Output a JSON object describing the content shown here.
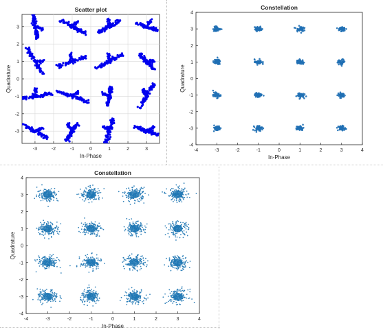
{
  "chart_data": [
    {
      "type": "scatter",
      "title": "Scatter plot",
      "xlabel": "In-Phase",
      "ylabel": "Quadrature",
      "xlim": [
        -3.7,
        3.7
      ],
      "ylim": [
        -3.7,
        3.7
      ],
      "xticks": [
        -3,
        -2,
        -1,
        0,
        1,
        2,
        3
      ],
      "yticks": [
        -3,
        -2,
        -1,
        0,
        1,
        2,
        3
      ],
      "grid": true,
      "color": "#0000ee",
      "constellation": [
        -3,
        -1,
        1,
        3
      ],
      "cluster_shape": "streaks",
      "streak_angles": [
        [
          -30,
          60,
          75,
          -20
        ],
        [
          10,
          -20,
          80,
          60
        ],
        [
          -60,
          20,
          30,
          -50
        ],
        [
          -80,
          -30,
          30,
          -20
        ]
      ]
    },
    {
      "type": "scatter",
      "title": "Constellation",
      "xlabel": "In-Phase",
      "ylabel": "Quadrature",
      "xlim": [
        -4,
        4
      ],
      "ylim": [
        -4,
        4
      ],
      "xticks": [
        -4,
        -3,
        -2,
        -1,
        0,
        1,
        2,
        3,
        4
      ],
      "yticks": [
        -4,
        -3,
        -2,
        -1,
        0,
        1,
        2,
        3,
        4
      ],
      "grid": false,
      "color": "#1f6fb4",
      "constellation": [
        -3,
        -1,
        1,
        3
      ],
      "cluster_shape": "tight",
      "spread": 0.09
    },
    {
      "type": "scatter",
      "title": "Constellation",
      "xlabel": "In-Phase",
      "ylabel": "Quadrature",
      "xlim": [
        -4,
        4
      ],
      "ylim": [
        -4,
        4
      ],
      "xticks": [
        -4,
        -3,
        -2,
        -1,
        0,
        1,
        2,
        3,
        4
      ],
      "yticks": [
        -4,
        -3,
        -2,
        -1,
        0,
        1,
        2,
        3,
        4
      ],
      "grid": false,
      "color": "#1f77b4",
      "constellation": [
        -3,
        -1,
        1,
        3
      ],
      "cluster_shape": "noisy",
      "spread": 0.24
    }
  ]
}
